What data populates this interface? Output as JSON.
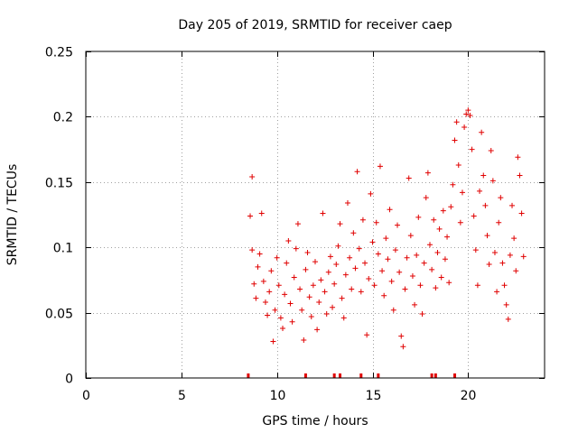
{
  "chart_data": {
    "type": "scatter",
    "title": "Day 205 of 2019, SRMTID for receiver caep",
    "xlabel": "GPS time / hours",
    "ylabel": "SRMTID / TECUs",
    "xlim": [
      0,
      24
    ],
    "ylim": [
      0,
      0.25
    ],
    "xticks": [
      0,
      5,
      10,
      15,
      20
    ],
    "xtick_labels": [
      "0",
      "5",
      "10",
      "15",
      "20"
    ],
    "yticks": [
      0,
      0.05,
      0.1,
      0.15,
      0.2,
      0.25
    ],
    "ytick_labels": [
      "0",
      "0.05",
      "0.1",
      "0.15",
      "0.2",
      "0.25"
    ],
    "grid": true,
    "marker": "+",
    "color": "#e00000",
    "x_range_of_points": [
      8.5,
      22.9
    ],
    "series": [
      {
        "name": "SRMTID",
        "points": [
          [
            8.6,
            0.124
          ],
          [
            8.7,
            0.154
          ],
          [
            8.7,
            0.098
          ],
          [
            8.8,
            0.072
          ],
          [
            8.9,
            0.061
          ],
          [
            9.0,
            0.085
          ],
          [
            9.1,
            0.095
          ],
          [
            9.2,
            0.126
          ],
          [
            9.3,
            0.074
          ],
          [
            9.4,
            0.058
          ],
          [
            9.5,
            0.048
          ],
          [
            9.6,
            0.066
          ],
          [
            9.7,
            0.082
          ],
          [
            9.8,
            0.028
          ],
          [
            9.9,
            0.052
          ],
          [
            10.0,
            0.092
          ],
          [
            10.1,
            0.071
          ],
          [
            10.2,
            0.046
          ],
          [
            10.3,
            0.038
          ],
          [
            10.4,
            0.064
          ],
          [
            10.5,
            0.088
          ],
          [
            10.6,
            0.105
          ],
          [
            10.7,
            0.057
          ],
          [
            10.8,
            0.043
          ],
          [
            10.9,
            0.077
          ],
          [
            11.0,
            0.099
          ],
          [
            11.1,
            0.118
          ],
          [
            11.2,
            0.068
          ],
          [
            11.3,
            0.052
          ],
          [
            11.4,
            0.029
          ],
          [
            11.5,
            0.083
          ],
          [
            11.6,
            0.096
          ],
          [
            11.7,
            0.062
          ],
          [
            11.8,
            0.047
          ],
          [
            11.9,
            0.071
          ],
          [
            12.0,
            0.089
          ],
          [
            12.1,
            0.037
          ],
          [
            12.2,
            0.058
          ],
          [
            12.3,
            0.075
          ],
          [
            12.4,
            0.126
          ],
          [
            12.5,
            0.066
          ],
          [
            12.6,
            0.049
          ],
          [
            12.7,
            0.081
          ],
          [
            12.8,
            0.093
          ],
          [
            12.9,
            0.054
          ],
          [
            13.0,
            0.072
          ],
          [
            13.1,
            0.087
          ],
          [
            13.2,
            0.101
          ],
          [
            13.3,
            0.118
          ],
          [
            13.4,
            0.061
          ],
          [
            13.5,
            0.046
          ],
          [
            13.6,
            0.079
          ],
          [
            13.7,
            0.134
          ],
          [
            13.8,
            0.092
          ],
          [
            13.9,
            0.068
          ],
          [
            14.0,
            0.111
          ],
          [
            14.1,
            0.084
          ],
          [
            14.2,
            0.158
          ],
          [
            14.3,
            0.099
          ],
          [
            14.4,
            0.066
          ],
          [
            14.5,
            0.121
          ],
          [
            14.6,
            0.088
          ],
          [
            14.7,
            0.033
          ],
          [
            14.8,
            0.076
          ],
          [
            14.9,
            0.141
          ],
          [
            15.0,
            0.104
          ],
          [
            15.1,
            0.071
          ],
          [
            15.2,
            0.119
          ],
          [
            15.3,
            0.095
          ],
          [
            15.4,
            0.162
          ],
          [
            15.5,
            0.082
          ],
          [
            15.6,
            0.063
          ],
          [
            15.7,
            0.107
          ],
          [
            15.8,
            0.091
          ],
          [
            15.9,
            0.129
          ],
          [
            16.0,
            0.074
          ],
          [
            16.1,
            0.052
          ],
          [
            16.2,
            0.098
          ],
          [
            16.3,
            0.117
          ],
          [
            16.4,
            0.081
          ],
          [
            16.5,
            0.032
          ],
          [
            16.6,
            0.024
          ],
          [
            16.7,
            0.068
          ],
          [
            16.8,
            0.092
          ],
          [
            16.9,
            0.153
          ],
          [
            17.0,
            0.109
          ],
          [
            17.1,
            0.078
          ],
          [
            17.2,
            0.056
          ],
          [
            17.3,
            0.094
          ],
          [
            17.4,
            0.123
          ],
          [
            17.5,
            0.071
          ],
          [
            17.6,
            0.049
          ],
          [
            17.7,
            0.088
          ],
          [
            17.8,
            0.138
          ],
          [
            17.9,
            0.157
          ],
          [
            18.0,
            0.102
          ],
          [
            18.1,
            0.083
          ],
          [
            18.2,
            0.121
          ],
          [
            18.3,
            0.069
          ],
          [
            18.4,
            0.096
          ],
          [
            18.5,
            0.114
          ],
          [
            18.6,
            0.077
          ],
          [
            18.7,
            0.128
          ],
          [
            18.8,
            0.091
          ],
          [
            18.9,
            0.108
          ],
          [
            19.0,
            0.073
          ],
          [
            19.1,
            0.131
          ],
          [
            19.2,
            0.148
          ],
          [
            19.3,
            0.182
          ],
          [
            19.4,
            0.196
          ],
          [
            19.5,
            0.163
          ],
          [
            19.6,
            0.119
          ],
          [
            19.7,
            0.142
          ],
          [
            19.8,
            0.192
          ],
          [
            19.9,
            0.202
          ],
          [
            20.0,
            0.205
          ],
          [
            20.1,
            0.201
          ],
          [
            20.2,
            0.175
          ],
          [
            20.3,
            0.124
          ],
          [
            20.4,
            0.098
          ],
          [
            20.5,
            0.071
          ],
          [
            20.6,
            0.143
          ],
          [
            20.7,
            0.188
          ],
          [
            20.8,
            0.155
          ],
          [
            20.9,
            0.132
          ],
          [
            21.0,
            0.109
          ],
          [
            21.1,
            0.087
          ],
          [
            21.2,
            0.174
          ],
          [
            21.3,
            0.151
          ],
          [
            21.4,
            0.096
          ],
          [
            21.5,
            0.066
          ],
          [
            21.6,
            0.119
          ],
          [
            21.7,
            0.138
          ],
          [
            21.8,
            0.088
          ],
          [
            21.9,
            0.071
          ],
          [
            22.0,
            0.056
          ],
          [
            22.1,
            0.045
          ],
          [
            22.2,
            0.094
          ],
          [
            22.3,
            0.132
          ],
          [
            22.4,
            0.107
          ],
          [
            22.5,
            0.082
          ],
          [
            22.6,
            0.169
          ],
          [
            22.7,
            0.155
          ],
          [
            22.8,
            0.126
          ],
          [
            22.9,
            0.093
          ]
        ]
      }
    ],
    "x_axis_marks": [
      8.5,
      11.5,
      13.0,
      13.3,
      14.4,
      15.3,
      18.1,
      18.3,
      19.3
    ]
  }
}
